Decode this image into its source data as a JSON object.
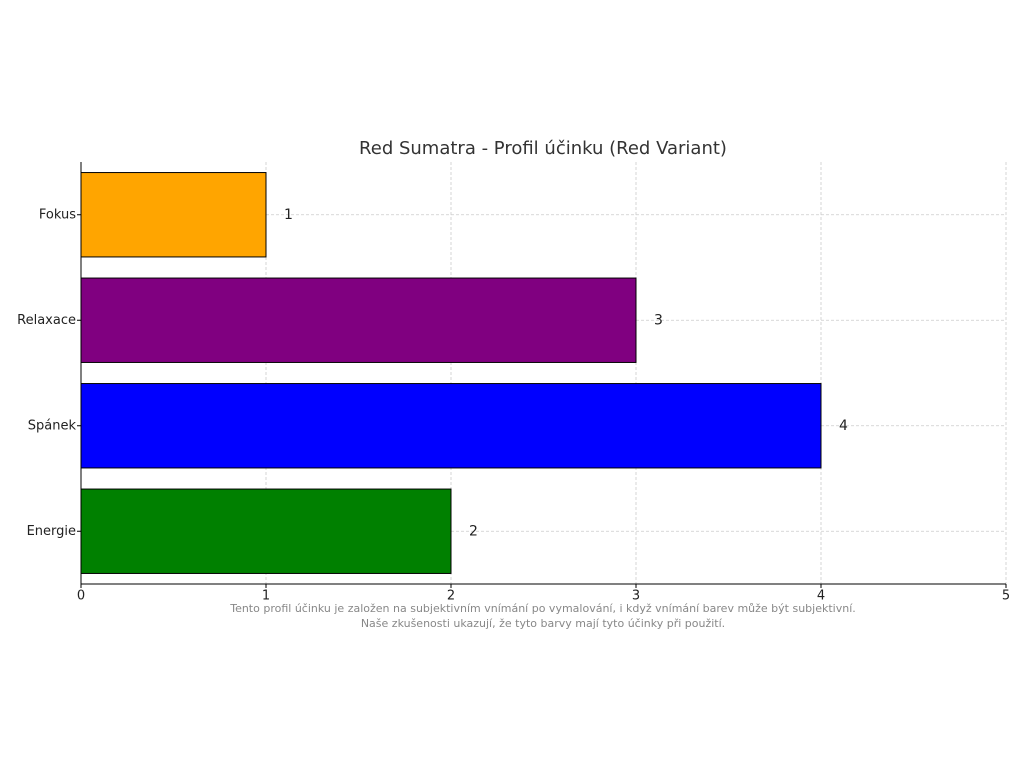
{
  "chart_data": {
    "type": "barh",
    "title": "Red Sumatra - Profil účinku (Red Variant)",
    "categories": [
      "Fokus",
      "Relaxace",
      "Spánek",
      "Energie"
    ],
    "values": [
      1,
      3,
      4,
      2
    ],
    "colors": [
      "#ffa500",
      "#800080",
      "#0000ff",
      "#008000"
    ],
    "xlim": [
      0,
      5
    ],
    "xticks": [
      0,
      1,
      2,
      3,
      4,
      5
    ],
    "grid": true,
    "footnote": [
      "Tento profil účinku je založen na subjektivním vnímání po vymalování, i když vnímání barev může být subjektivní.",
      "Naše zkušenosti ukazují, že tyto barvy mají tyto účinky při použití."
    ]
  }
}
